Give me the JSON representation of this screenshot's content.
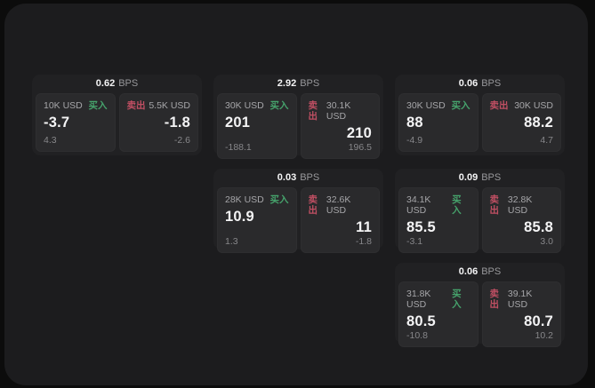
{
  "labels": {
    "bps": "BPS",
    "buy": "买入",
    "sell": "卖出"
  },
  "colors": {
    "page_background": "#0c0c0c",
    "window_background": "#1c1c1e",
    "card_background": "#212123",
    "panel_background": "#2a2a2c",
    "buy_accent": "#46a36c",
    "sell_accent": "#c04f63",
    "primary_text": "#f4f4f5",
    "muted_text": "#98989b"
  },
  "cards": [
    {
      "bps": "0.62",
      "buy": {
        "notional": "10K USD",
        "price": "-3.7",
        "delta": "4.3"
      },
      "sell": {
        "notional": "5.5K USD",
        "price": "-1.8",
        "delta": "-2.6"
      }
    },
    {
      "bps": "2.92",
      "buy": {
        "notional": "30K USD",
        "price": "201",
        "delta": "-188.1"
      },
      "sell": {
        "notional": "30.1K USD",
        "price": "210",
        "delta": "196.5"
      }
    },
    {
      "bps": "0.06",
      "buy": {
        "notional": "30K USD",
        "price": "88",
        "delta": "-4.9"
      },
      "sell": {
        "notional": "30K USD",
        "price": "88.2",
        "delta": "4.7"
      }
    },
    {
      "bps": "0.03",
      "buy": {
        "notional": "28K USD",
        "price": "10.9",
        "delta": "1.3"
      },
      "sell": {
        "notional": "32.6K USD",
        "price": "11",
        "delta": "-1.8"
      }
    },
    {
      "bps": "0.09",
      "buy": {
        "notional": "34.1K USD",
        "price": "85.5",
        "delta": "-3.1"
      },
      "sell": {
        "notional": "32.8K USD",
        "price": "85.8",
        "delta": "3.0"
      }
    },
    {
      "bps": "0.06",
      "buy": {
        "notional": "31.8K USD",
        "price": "80.5",
        "delta": "-10.8"
      },
      "sell": {
        "notional": "39.1K USD",
        "price": "80.7",
        "delta": "10.2"
      }
    }
  ]
}
